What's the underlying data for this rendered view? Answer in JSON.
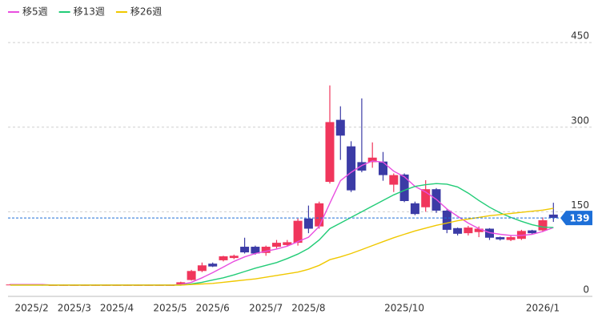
{
  "chart_data": {
    "type": "candlestick",
    "categories": [
      null,
      null,
      "2025/2",
      null,
      null,
      null,
      "2025/3",
      null,
      null,
      null,
      "2025/4",
      null,
      null,
      null,
      null,
      "2025/5",
      null,
      null,
      null,
      "2025/6",
      null,
      null,
      null,
      null,
      "2025/7",
      null,
      null,
      null,
      "2025/8",
      null,
      null,
      null,
      null,
      null,
      null,
      null,
      null,
      "2025/10",
      null,
      null,
      null,
      null,
      null,
      null,
      null,
      null,
      null,
      null,
      null,
      null,
      "2026/1",
      null
    ],
    "open": [
      21,
      21,
      21,
      21,
      20,
      20,
      20,
      20,
      20,
      20,
      20,
      20,
      20,
      20,
      20,
      20,
      20,
      29,
      45,
      58,
      64,
      68,
      88,
      88,
      77,
      88,
      91,
      95,
      138,
      124,
      203,
      313,
      266,
      238,
      238,
      239,
      198,
      216,
      165,
      158,
      190,
      152,
      121,
      112,
      114,
      120,
      105,
      100,
      102,
      117,
      117,
      145
    ],
    "high": [
      22,
      22,
      22,
      22,
      21,
      21,
      21,
      21,
      21,
      21,
      21,
      21,
      21,
      21,
      21,
      21,
      26,
      47,
      60,
      60,
      72,
      74,
      104,
      90,
      90,
      100,
      100,
      138,
      161,
      168,
      374,
      337,
      275,
      351,
      273,
      256,
      218,
      218,
      168,
      206,
      192,
      155,
      122,
      125,
      124,
      121,
      106,
      108,
      118,
      118,
      140,
      166
    ],
    "low": [
      20,
      20,
      20,
      19,
      19,
      19,
      19,
      19,
      19,
      19,
      19,
      19,
      19,
      19,
      19,
      19,
      19,
      28,
      43,
      52,
      62,
      66,
      76,
      74,
      72,
      85,
      88,
      90,
      112,
      120,
      200,
      242,
      185,
      220,
      228,
      205,
      185,
      167,
      144,
      150,
      148,
      112,
      108,
      108,
      105,
      100,
      99,
      98,
      100,
      110,
      114,
      132
    ],
    "close": [
      21,
      21,
      21,
      20,
      20,
      20,
      20,
      20,
      20,
      20,
      20,
      20,
      20,
      20,
      20,
      20,
      25,
      45,
      55,
      53,
      71,
      72,
      78,
      76,
      88,
      95,
      96,
      134,
      120,
      165,
      309,
      285,
      188,
      223,
      246,
      215,
      215,
      169,
      146,
      190,
      152,
      118,
      111,
      122,
      120,
      104,
      101,
      105,
      116,
      112,
      135,
      139
    ],
    "up_color": "#f0365c",
    "down_color": "#3b3ba6",
    "series": [
      {
        "name": "移5週",
        "color": "#e94fe0",
        "values": [
          21,
          21,
          21,
          21,
          20,
          20,
          20,
          20,
          20,
          20,
          20,
          20,
          20,
          20,
          20,
          20,
          21,
          25,
          33,
          42,
          52,
          62,
          70,
          76,
          80,
          84,
          89,
          97,
          105,
          124,
          165,
          205,
          220,
          232,
          240,
          238,
          222,
          212,
          195,
          185,
          172,
          155,
          142,
          130,
          120,
          113,
          110,
          108,
          108,
          110,
          115,
          122
        ]
      },
      {
        "name": "移13週",
        "color": "#22cc77",
        "values": [
          20,
          20,
          20,
          20,
          20,
          20,
          20,
          20,
          20,
          20,
          20,
          20,
          20,
          20,
          20,
          20,
          20,
          22,
          25,
          29,
          33,
          38,
          44,
          50,
          55,
          60,
          67,
          75,
          85,
          100,
          120,
          130,
          140,
          150,
          160,
          170,
          180,
          188,
          195,
          198,
          200,
          199,
          194,
          183,
          170,
          158,
          148,
          140,
          133,
          127,
          123,
          122
        ]
      },
      {
        "name": "移26週",
        "color": "#f0c800",
        "values": [
          20,
          20,
          20,
          20,
          20,
          20,
          20,
          20,
          20,
          20,
          20,
          20,
          20,
          20,
          20,
          20,
          20,
          21,
          22,
          23,
          25,
          27,
          29,
          31,
          34,
          37,
          40,
          43,
          48,
          55,
          65,
          70,
          76,
          83,
          90,
          97,
          104,
          110,
          116,
          121,
          126,
          130,
          134,
          137,
          140,
          143,
          145,
          147,
          149,
          151,
          153,
          156
        ]
      }
    ],
    "last_price": 139,
    "last_price_color": "#1d6fd8",
    "ylim": [
      0,
      480
    ],
    "yticks": [
      0,
      150,
      300,
      450
    ],
    "grid": true
  }
}
